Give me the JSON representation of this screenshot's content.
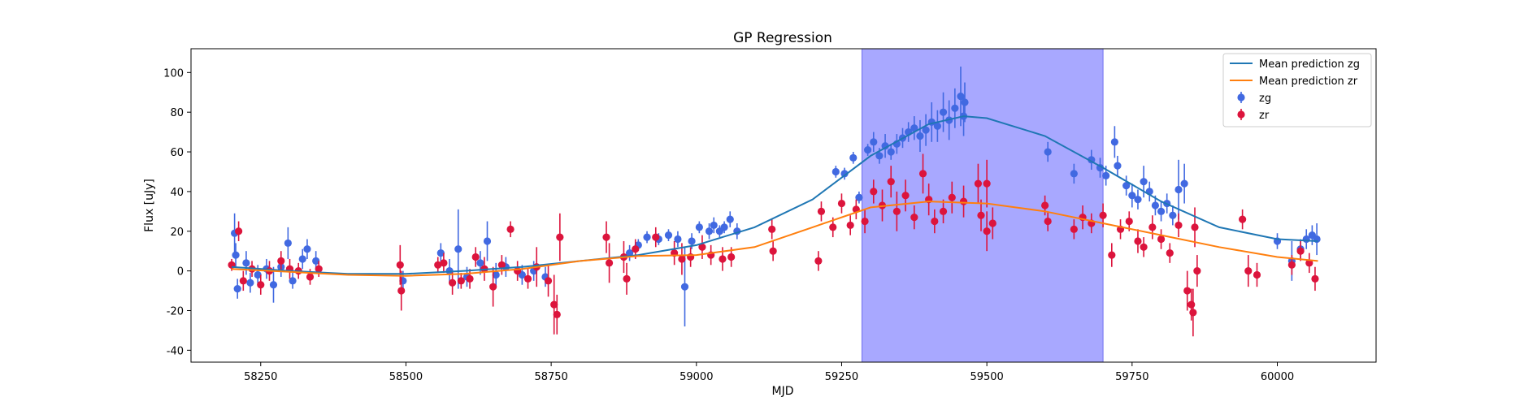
{
  "chart_data": {
    "type": "scatter",
    "title": "GP Regression",
    "xlabel": "MJD",
    "ylabel": "Flux [uJy]",
    "xlim": [
      58130,
      60170
    ],
    "ylim": [
      -46,
      112
    ],
    "xticks": [
      58250,
      58500,
      58750,
      59000,
      59250,
      59500,
      59750,
      60000
    ],
    "yticks": [
      -40,
      -20,
      0,
      20,
      40,
      60,
      80,
      100
    ],
    "grid": false,
    "legend_position": "top-right",
    "shaded_region": {
      "x_start": 59285,
      "x_end": 59700,
      "color": "#a8a8ff"
    },
    "lines": [
      {
        "name": "Mean prediction zg",
        "color": "#1f77b4",
        "x": [
          58200,
          58300,
          58400,
          58500,
          58600,
          58700,
          58800,
          58900,
          59000,
          59100,
          59200,
          59300,
          59400,
          59460,
          59500,
          59600,
          59700,
          59800,
          59900,
          60000,
          60070
        ],
        "y": [
          2,
          0,
          -1.5,
          -1.5,
          0,
          2,
          5,
          8,
          13,
          22,
          36,
          58,
          74,
          78,
          77,
          68,
          52,
          35,
          22,
          16,
          15
        ]
      },
      {
        "name": "Mean prediction zr",
        "color": "#ff7f0e",
        "x": [
          58200,
          58300,
          58400,
          58500,
          58600,
          58700,
          58800,
          58900,
          59000,
          59100,
          59200,
          59300,
          59400,
          59500,
          59600,
          59700,
          59800,
          59900,
          60000,
          60070
        ],
        "y": [
          1,
          -0.5,
          -2,
          -2.5,
          -1.5,
          1,
          5,
          7.5,
          8,
          12,
          22,
          32,
          35,
          34,
          30,
          24,
          18,
          12,
          7,
          5
        ]
      }
    ],
    "series": [
      {
        "name": "zg",
        "color": "#4169e1",
        "points": [
          [
            58205,
            19,
            10
          ],
          [
            58207,
            8,
            6
          ],
          [
            58210,
            -9,
            5
          ],
          [
            58225,
            4,
            6
          ],
          [
            58232,
            -6,
            5
          ],
          [
            58245,
            -2,
            5
          ],
          [
            58260,
            1,
            5
          ],
          [
            58272,
            -7,
            9
          ],
          [
            58285,
            2,
            5
          ],
          [
            58297,
            14,
            8
          ],
          [
            58305,
            -5,
            4
          ],
          [
            58322,
            6,
            5
          ],
          [
            58330,
            11,
            5
          ],
          [
            58345,
            5,
            5
          ],
          [
            58495,
            -5,
            5
          ],
          [
            58560,
            9,
            5
          ],
          [
            58575,
            0,
            6
          ],
          [
            58590,
            11,
            20
          ],
          [
            58605,
            -3,
            5
          ],
          [
            58628,
            4,
            6
          ],
          [
            58640,
            15,
            10
          ],
          [
            58655,
            -2,
            6
          ],
          [
            58672,
            2,
            5
          ],
          [
            58700,
            -2,
            5
          ],
          [
            58720,
            0,
            5
          ],
          [
            58740,
            -3,
            5
          ],
          [
            58885,
            9,
            4
          ],
          [
            58900,
            13,
            3
          ],
          [
            58915,
            17,
            3
          ],
          [
            58935,
            16,
            3
          ],
          [
            58952,
            18,
            3
          ],
          [
            58968,
            16,
            4
          ],
          [
            58980,
            -8,
            20
          ],
          [
            58992,
            15,
            4
          ],
          [
            59005,
            22,
            3
          ],
          [
            59022,
            20,
            4
          ],
          [
            59030,
            23,
            4
          ],
          [
            59040,
            20,
            3
          ],
          [
            59048,
            22,
            3
          ],
          [
            59058,
            26,
            4
          ],
          [
            59070,
            20,
            4
          ],
          [
            59240,
            50,
            3
          ],
          [
            59255,
            49,
            3
          ],
          [
            59270,
            57,
            3
          ],
          [
            59280,
            37,
            3
          ],
          [
            59295,
            61,
            3
          ],
          [
            59305,
            65,
            5
          ],
          [
            59315,
            58,
            4
          ],
          [
            59325,
            63,
            6
          ],
          [
            59335,
            60,
            4
          ],
          [
            59345,
            64,
            5
          ],
          [
            59355,
            67,
            5
          ],
          [
            59365,
            70,
            5
          ],
          [
            59375,
            72,
            6
          ],
          [
            59385,
            68,
            8
          ],
          [
            59395,
            71,
            8
          ],
          [
            59405,
            75,
            10
          ],
          [
            59415,
            73,
            8
          ],
          [
            59425,
            80,
            10
          ],
          [
            59435,
            76,
            10
          ],
          [
            59445,
            82,
            10
          ],
          [
            59455,
            88,
            15
          ],
          [
            59460,
            78,
            10
          ],
          [
            59462,
            85,
            10
          ],
          [
            59605,
            60,
            5
          ],
          [
            59650,
            49,
            5
          ],
          [
            59680,
            56,
            5
          ],
          [
            59695,
            52,
            5
          ],
          [
            59705,
            48,
            5
          ],
          [
            59720,
            65,
            8
          ],
          [
            59725,
            53,
            5
          ],
          [
            59740,
            43,
            5
          ],
          [
            59750,
            38,
            6
          ],
          [
            59760,
            36,
            5
          ],
          [
            59770,
            45,
            8
          ],
          [
            59780,
            40,
            5
          ],
          [
            59790,
            33,
            5
          ],
          [
            59800,
            30,
            5
          ],
          [
            59810,
            34,
            5
          ],
          [
            59820,
            28,
            5
          ],
          [
            59830,
            41,
            15
          ],
          [
            59840,
            44,
            10
          ],
          [
            60000,
            15,
            4
          ],
          [
            60025,
            5,
            10
          ],
          [
            60040,
            11,
            5
          ],
          [
            60050,
            16,
            5
          ],
          [
            60060,
            18,
            5
          ],
          [
            60068,
            16,
            8
          ]
        ]
      },
      {
        "name": "zr",
        "color": "#dc143c",
        "points": [
          [
            58200,
            3,
            3
          ],
          [
            58212,
            20,
            5
          ],
          [
            58220,
            -5,
            5
          ],
          [
            58235,
            1,
            4
          ],
          [
            58250,
            -7,
            5
          ],
          [
            58265,
            0,
            5
          ],
          [
            58285,
            5,
            5
          ],
          [
            58300,
            1,
            5
          ],
          [
            58315,
            0,
            4
          ],
          [
            58335,
            -3,
            4
          ],
          [
            58350,
            1,
            4
          ],
          [
            58490,
            3,
            10
          ],
          [
            58492,
            -10,
            10
          ],
          [
            58555,
            3,
            4
          ],
          [
            58565,
            4,
            5
          ],
          [
            58580,
            -6,
            6
          ],
          [
            58595,
            -5,
            4
          ],
          [
            58610,
            -4,
            5
          ],
          [
            58620,
            7,
            5
          ],
          [
            58635,
            1,
            6
          ],
          [
            58650,
            -8,
            10
          ],
          [
            58665,
            3,
            5
          ],
          [
            58680,
            21,
            4
          ],
          [
            58692,
            0,
            5
          ],
          [
            58710,
            -4,
            5
          ],
          [
            58725,
            2,
            10
          ],
          [
            58745,
            -5,
            8
          ],
          [
            58755,
            -17,
            15
          ],
          [
            58760,
            -22,
            10
          ],
          [
            58765,
            17,
            12
          ],
          [
            58845,
            17,
            8
          ],
          [
            58850,
            4,
            10
          ],
          [
            58875,
            7,
            8
          ],
          [
            58880,
            -4,
            8
          ],
          [
            58895,
            11,
            5
          ],
          [
            58930,
            17,
            5
          ],
          [
            58962,
            9,
            6
          ],
          [
            58975,
            6,
            8
          ],
          [
            58990,
            7,
            5
          ],
          [
            59010,
            12,
            6
          ],
          [
            59025,
            8,
            5
          ],
          [
            59045,
            6,
            6
          ],
          [
            59060,
            7,
            5
          ],
          [
            59130,
            21,
            5
          ],
          [
            59132,
            10,
            5
          ],
          [
            59210,
            5,
            5
          ],
          [
            59215,
            30,
            5
          ],
          [
            59235,
            22,
            5
          ],
          [
            59250,
            34,
            5
          ],
          [
            59265,
            23,
            5
          ],
          [
            59275,
            31,
            5
          ],
          [
            59290,
            25,
            6
          ],
          [
            59305,
            40,
            6
          ],
          [
            59320,
            33,
            8
          ],
          [
            59335,
            45,
            8
          ],
          [
            59345,
            30,
            10
          ],
          [
            59360,
            38,
            8
          ],
          [
            59375,
            27,
            6
          ],
          [
            59390,
            49,
            10
          ],
          [
            59400,
            36,
            8
          ],
          [
            59410,
            25,
            6
          ],
          [
            59425,
            30,
            6
          ],
          [
            59440,
            37,
            8
          ],
          [
            59460,
            35,
            8
          ],
          [
            59485,
            44,
            10
          ],
          [
            59490,
            28,
            8
          ],
          [
            59500,
            44,
            12
          ],
          [
            59500,
            20,
            10
          ],
          [
            59510,
            24,
            8
          ],
          [
            59600,
            33,
            5
          ],
          [
            59605,
            25,
            5
          ],
          [
            59650,
            21,
            5
          ],
          [
            59665,
            27,
            6
          ],
          [
            59680,
            24,
            5
          ],
          [
            59700,
            28,
            6
          ],
          [
            59715,
            8,
            6
          ],
          [
            59730,
            21,
            5
          ],
          [
            59745,
            25,
            5
          ],
          [
            59760,
            15,
            6
          ],
          [
            59770,
            12,
            5
          ],
          [
            59785,
            22,
            6
          ],
          [
            59800,
            16,
            5
          ],
          [
            59815,
            9,
            5
          ],
          [
            59830,
            23,
            6
          ],
          [
            59845,
            -10,
            10
          ],
          [
            59852,
            -17,
            8
          ],
          [
            59855,
            -21,
            12
          ],
          [
            59858,
            22,
            10
          ],
          [
            59862,
            0,
            8
          ],
          [
            59940,
            26,
            5
          ],
          [
            59950,
            0,
            8
          ],
          [
            59965,
            -2,
            6
          ],
          [
            60025,
            3,
            5
          ],
          [
            60040,
            10,
            5
          ],
          [
            60055,
            4,
            5
          ],
          [
            60065,
            -4,
            6
          ]
        ]
      }
    ]
  }
}
